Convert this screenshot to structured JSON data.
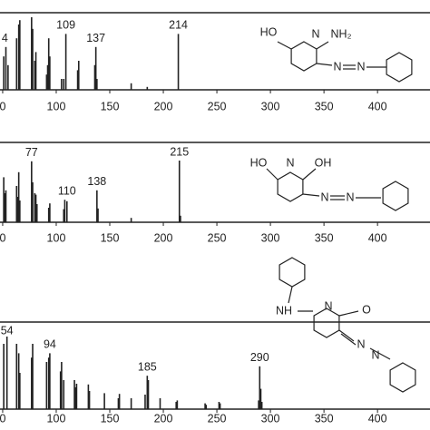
{
  "chart_data": [
    {
      "type": "stick",
      "xlim": [
        47.5,
        449
      ],
      "ylim": [
        0,
        100
      ],
      "xticks": [
        {
          "value": 50,
          "label": "0"
        },
        100,
        150,
        200,
        250,
        300,
        350,
        400
      ],
      "x": [
        51,
        53,
        55,
        63,
        65,
        66,
        77,
        78,
        80,
        81,
        91,
        92,
        93,
        94,
        105,
        107,
        109,
        120,
        121,
        136,
        137,
        138,
        170,
        185,
        214
      ],
      "values": [
        46,
        59,
        34,
        71,
        90,
        96,
        100,
        84,
        40,
        52,
        21,
        34,
        71,
        46,
        15,
        15,
        77,
        27,
        40,
        34,
        59,
        15,
        9,
        4,
        77
      ],
      "color": "#222",
      "annotations": [
        {
          "x": 52,
          "text": "4"
        },
        {
          "x": 109,
          "text": "109"
        },
        {
          "x": 137,
          "text": "137"
        },
        {
          "x": 214,
          "text": "214"
        }
      ]
    },
    {
      "type": "stick",
      "xlim": [
        47.5,
        449
      ],
      "ylim": [
        0,
        100
      ],
      "xticks": [
        {
          "value": 50,
          "label": "0"
        },
        100,
        150,
        200,
        250,
        300,
        350,
        400
      ],
      "x": [
        51,
        52,
        53,
        63,
        64,
        65,
        66,
        77,
        78,
        80,
        81,
        82,
        93,
        94,
        107,
        108,
        110,
        138,
        139,
        170,
        215,
        216
      ],
      "values": [
        62,
        40,
        44,
        50,
        35,
        69,
        30,
        84,
        55,
        40,
        38,
        25,
        20,
        26,
        18,
        31,
        29,
        44,
        19,
        6,
        85,
        9
      ],
      "color": "#222",
      "annotations": [
        {
          "x": 77,
          "text": "77"
        },
        {
          "x": 110,
          "text": "110"
        },
        {
          "x": 138,
          "text": "138"
        },
        {
          "x": 215,
          "text": "215"
        }
      ]
    },
    {
      "type": "stick",
      "xlim": [
        47.5,
        449
      ],
      "ylim": [
        0,
        100
      ],
      "xticks": [
        {
          "value": 50,
          "label": "0"
        },
        100,
        150,
        200,
        250,
        300,
        350,
        400
      ],
      "x": [
        51,
        54,
        63,
        65,
        66,
        77,
        78,
        91,
        93,
        94,
        104,
        105,
        107,
        117,
        118,
        119,
        130,
        131,
        145,
        158,
        159,
        170,
        183,
        185,
        186,
        197,
        212,
        213,
        239,
        240,
        252,
        253,
        289,
        290,
        291,
        292
      ],
      "values": [
        90,
        100,
        90,
        77,
        50,
        71,
        90,
        65,
        71,
        77,
        52,
        65,
        40,
        40,
        30,
        35,
        34,
        25,
        22,
        15,
        21,
        15,
        20,
        46,
        40,
        15,
        10,
        12,
        8,
        6,
        10,
        8,
        12,
        59,
        28,
        10
      ],
      "color": "#222",
      "annotations": [
        {
          "x": 54,
          "text": "54"
        },
        {
          "x": 94,
          "text": "94"
        },
        {
          "x": 185,
          "text": "185"
        },
        {
          "x": 290,
          "text": "290"
        }
      ]
    }
  ],
  "structures": [
    [
      "HO",
      "N",
      "NH₂",
      "N",
      "N"
    ],
    [
      "HO",
      "N",
      "OH",
      "N",
      "N"
    ],
    [
      "NH",
      "N",
      "O",
      "N",
      "N"
    ]
  ]
}
